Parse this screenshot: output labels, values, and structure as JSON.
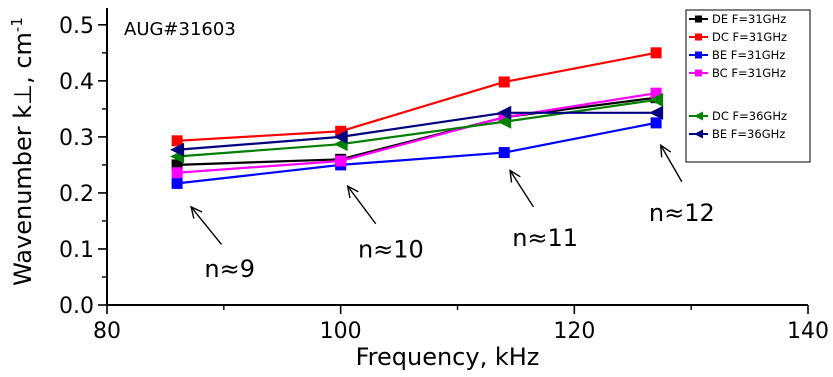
{
  "chart_data": {
    "type": "line",
    "title": "AUG#31603",
    "xlabel": "Frequency, kHz",
    "ylabel": "Wavenumber k⊥, cm",
    "ylabel_sup": "-1",
    "xlim": [
      80,
      140
    ],
    "ylim": [
      0.0,
      0.53
    ],
    "xticks": [
      80,
      100,
      120,
      140
    ],
    "yticks": [
      0.0,
      0.1,
      0.2,
      0.3,
      0.4,
      0.5
    ],
    "xtick_labels": [
      "80",
      "100",
      "120",
      "140"
    ],
    "ytick_labels": [
      "0.0",
      "0.1",
      "0.2",
      "0.3",
      "0.4",
      "0.5"
    ],
    "grid": false,
    "legend_position": "top-right",
    "series": [
      {
        "name": "DE F=31GHz",
        "color": "#000000",
        "marker": "square",
        "x": [
          86,
          100,
          114,
          127
        ],
        "y": [
          0.25,
          0.26,
          0.335,
          0.37
        ]
      },
      {
        "name": "DC F=31GHz",
        "color": "#ff0000",
        "marker": "square",
        "x": [
          86,
          100,
          114,
          127
        ],
        "y": [
          0.293,
          0.31,
          0.398,
          0.45
        ]
      },
      {
        "name": "BE F=31GHz",
        "color": "#0000ff",
        "marker": "square",
        "x": [
          86,
          100,
          114,
          127
        ],
        "y": [
          0.217,
          0.25,
          0.272,
          0.325
        ]
      },
      {
        "name": "BC F=31GHz",
        "color": "#ff00ff",
        "marker": "square",
        "x": [
          86,
          100,
          114,
          127
        ],
        "y": [
          0.236,
          0.257,
          0.335,
          0.378
        ]
      },
      {
        "name": "DC F=36GHz",
        "color": "#008000",
        "marker": "triangle-left",
        "x": [
          86,
          100,
          114,
          127
        ],
        "y": [
          0.265,
          0.287,
          0.327,
          0.366
        ]
      },
      {
        "name": "BE F=36GHz",
        "color": "#000080",
        "marker": "triangle-left",
        "x": [
          86,
          100,
          114,
          127
        ],
        "y": [
          0.277,
          0.3,
          0.343,
          0.343
        ]
      }
    ],
    "annotations": [
      {
        "text": "n≈9",
        "x": 90.5,
        "y": 0.05,
        "arrow_from": [
          89.8,
          0.108
        ],
        "arrow_to": [
          87.2,
          0.175
        ]
      },
      {
        "text": "n≈10",
        "x": 104.3,
        "y": 0.085,
        "arrow_from": [
          103.0,
          0.145
        ],
        "arrow_to": [
          100.6,
          0.212
        ]
      },
      {
        "text": "n≈11",
        "x": 117.5,
        "y": 0.105,
        "arrow_from": [
          116.5,
          0.175
        ],
        "arrow_to": [
          114.5,
          0.24
        ]
      },
      {
        "text": "n≈12",
        "x": 129.2,
        "y": 0.15,
        "arrow_from": [
          129.2,
          0.22
        ],
        "arrow_to": [
          127.4,
          0.285
        ]
      }
    ]
  }
}
